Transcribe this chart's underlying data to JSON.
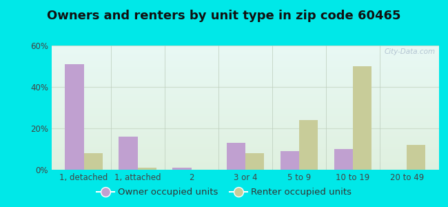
{
  "title": "Owners and renters by unit type in zip code 60465",
  "categories": [
    "1, detached",
    "1, attached",
    "2",
    "3 or 4",
    "5 to 9",
    "10 to 19",
    "20 to 49"
  ],
  "owner_values": [
    51,
    16,
    1,
    13,
    9,
    10,
    0
  ],
  "renter_values": [
    8,
    1,
    0,
    8,
    24,
    50,
    12
  ],
  "owner_color": "#c0a0d0",
  "renter_color": "#c8cc99",
  "ylim": [
    0,
    60
  ],
  "yticks": [
    0,
    20,
    40,
    60
  ],
  "ytick_labels": [
    "0%",
    "20%",
    "40%",
    "60%"
  ],
  "bg_top": "#e8f8f4",
  "bg_bottom": "#dff0df",
  "outer_bg": "#00e8e8",
  "title_fontsize": 13,
  "axis_label_fontsize": 8.5,
  "legend_fontsize": 9.5,
  "bar_width": 0.35,
  "grid_color": "#ccddcc",
  "watermark": "City-Data.com",
  "legend_owner": "Owner occupied units",
  "legend_renter": "Renter occupied units"
}
